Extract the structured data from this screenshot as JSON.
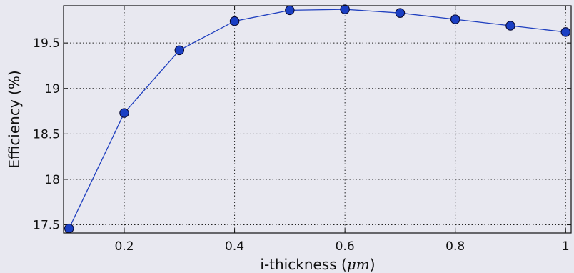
{
  "chart_data": {
    "type": "line",
    "xlabel": "i-thickness",
    "xlabel_unit": "μm",
    "ylabel": "Efficiency (%)",
    "xlim": [
      0.09,
      1.01
    ],
    "ylim": [
      17.41,
      19.91
    ],
    "x_ticks": [
      0.2,
      0.4,
      0.6,
      0.8,
      1.0
    ],
    "x_tick_labels": [
      "0.2",
      "0.4",
      "0.6",
      "0.8",
      "1"
    ],
    "y_ticks": [
      17.5,
      18.0,
      18.5,
      19.0,
      19.5
    ],
    "y_tick_labels": [
      "17.5",
      "18",
      "18.5",
      "19",
      "19.5"
    ],
    "grid": true,
    "line_color": "#1f3fbf",
    "marker_color": "#1a3fc4",
    "series": [
      {
        "x": [
          0.1,
          0.2,
          0.3,
          0.4,
          0.5,
          0.6,
          0.7,
          0.8,
          0.9,
          1.0
        ],
        "y": [
          17.46,
          18.73,
          19.42,
          19.74,
          19.86,
          19.87,
          19.83,
          19.76,
          19.69,
          19.62
        ]
      }
    ]
  }
}
